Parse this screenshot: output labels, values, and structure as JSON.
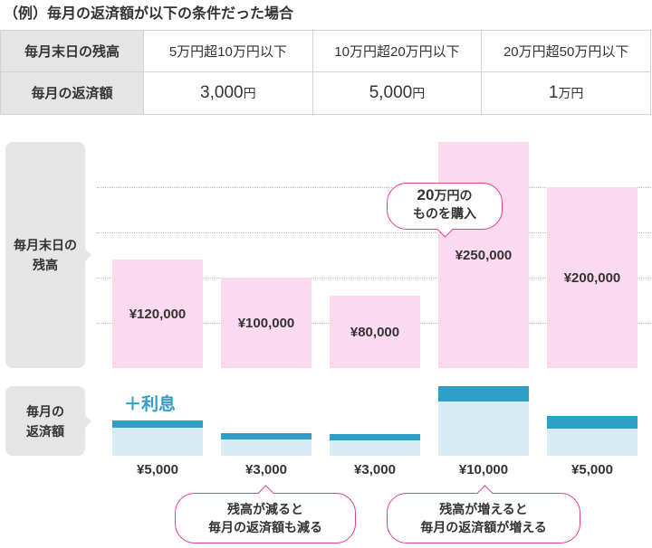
{
  "title": "（例）毎月の返済額が以下の条件だった場合",
  "table": {
    "row1_label": "毎月末日の残高",
    "row2_label": "毎月の返済額",
    "ranges": [
      "5万円超10万円以下",
      "10万円超20万円以下",
      "20万円超50万円以下"
    ],
    "amounts": [
      {
        "num": "3,000",
        "unit": "円"
      },
      {
        "num": "5,000",
        "unit": "円"
      },
      {
        "num": "1",
        "unit": "万円"
      }
    ]
  },
  "chart": {
    "balance_label_line1": "毎月末日の",
    "balance_label_line2": "残高",
    "payment_label_line1": "毎月の",
    "payment_label_line2": "返済額",
    "balances": [
      "¥120,000",
      "¥100,000",
      "¥80,000",
      "¥250,000",
      "¥200,000"
    ],
    "payments": [
      "¥5,000",
      "¥3,000",
      "¥3,000",
      "¥10,000",
      "¥5,000"
    ],
    "interest_label": "＋利息",
    "colors": {
      "bar": "#fbd9ee",
      "payment": "#d7ebf3",
      "interest": "#2e9fc6",
      "accent": "#e2408f"
    }
  },
  "bubbles": {
    "purchase": {
      "num": "20",
      "line1_rest": "万円の",
      "line2": "ものを購入"
    },
    "decrease": {
      "line1": "残高が減ると",
      "line2": "毎月の返済額も減る"
    },
    "increase": {
      "line1": "残高が増えると",
      "line2": "毎月の返済額が増える"
    }
  }
}
